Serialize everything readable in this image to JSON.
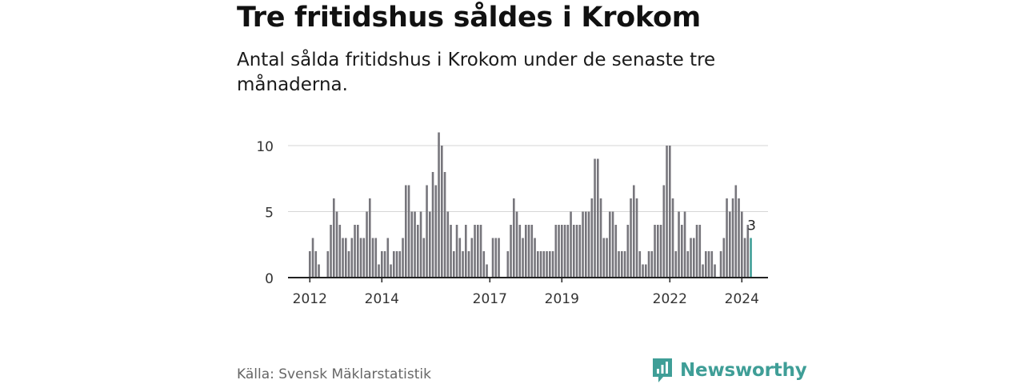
{
  "header": {
    "title": "Tre fritidshus såldes i Krokom",
    "subtitle": "Antal sålda fritidshus i Krokom under de senaste tre månaderna."
  },
  "footer": {
    "source": "Källa: Svensk Mäklarstatistik",
    "brand": "Newsworthy"
  },
  "colors": {
    "bar": "#77767c",
    "highlight": "#3f9e97",
    "grid": "#d6d6d6",
    "axis": "#222222",
    "brand": "#3f9e97"
  },
  "chart_data": {
    "type": "bar",
    "start_year": 2012,
    "start_month": 1,
    "values": [
      2,
      3,
      2,
      1,
      0,
      0,
      2,
      4,
      6,
      5,
      4,
      3,
      3,
      2,
      3,
      4,
      4,
      3,
      3,
      5,
      6,
      3,
      3,
      1,
      2,
      2,
      3,
      1,
      2,
      2,
      2,
      3,
      7,
      7,
      5,
      5,
      4,
      5,
      3,
      7,
      5,
      8,
      7,
      11,
      10,
      8,
      5,
      4,
      2,
      4,
      3,
      2,
      4,
      2,
      3,
      4,
      4,
      4,
      2,
      1,
      0,
      3,
      3,
      3,
      0,
      0,
      2,
      4,
      6,
      5,
      4,
      3,
      4,
      4,
      4,
      3,
      2,
      2,
      2,
      2,
      2,
      2,
      4,
      4,
      4,
      4,
      4,
      5,
      4,
      4,
      4,
      5,
      5,
      5,
      6,
      9,
      9,
      6,
      3,
      3,
      5,
      5,
      4,
      2,
      2,
      2,
      4,
      6,
      7,
      6,
      2,
      1,
      1,
      2,
      2,
      4,
      4,
      4,
      7,
      10,
      10,
      6,
      2,
      5,
      4,
      5,
      2,
      3,
      3,
      4,
      4,
      1,
      2,
      2,
      2,
      1,
      0,
      2,
      3,
      6,
      5,
      6,
      7,
      6,
      5,
      3,
      4,
      3
    ],
    "highlight_last": 1,
    "last_label": "3",
    "x_ticks": [
      "2012",
      "2014",
      "2017",
      "2019",
      "2022",
      "2024"
    ],
    "y_ticks": [
      "0",
      "5",
      "10"
    ],
    "ylim": [
      0,
      11
    ],
    "grid": true,
    "xlabel": "",
    "ylabel": ""
  }
}
